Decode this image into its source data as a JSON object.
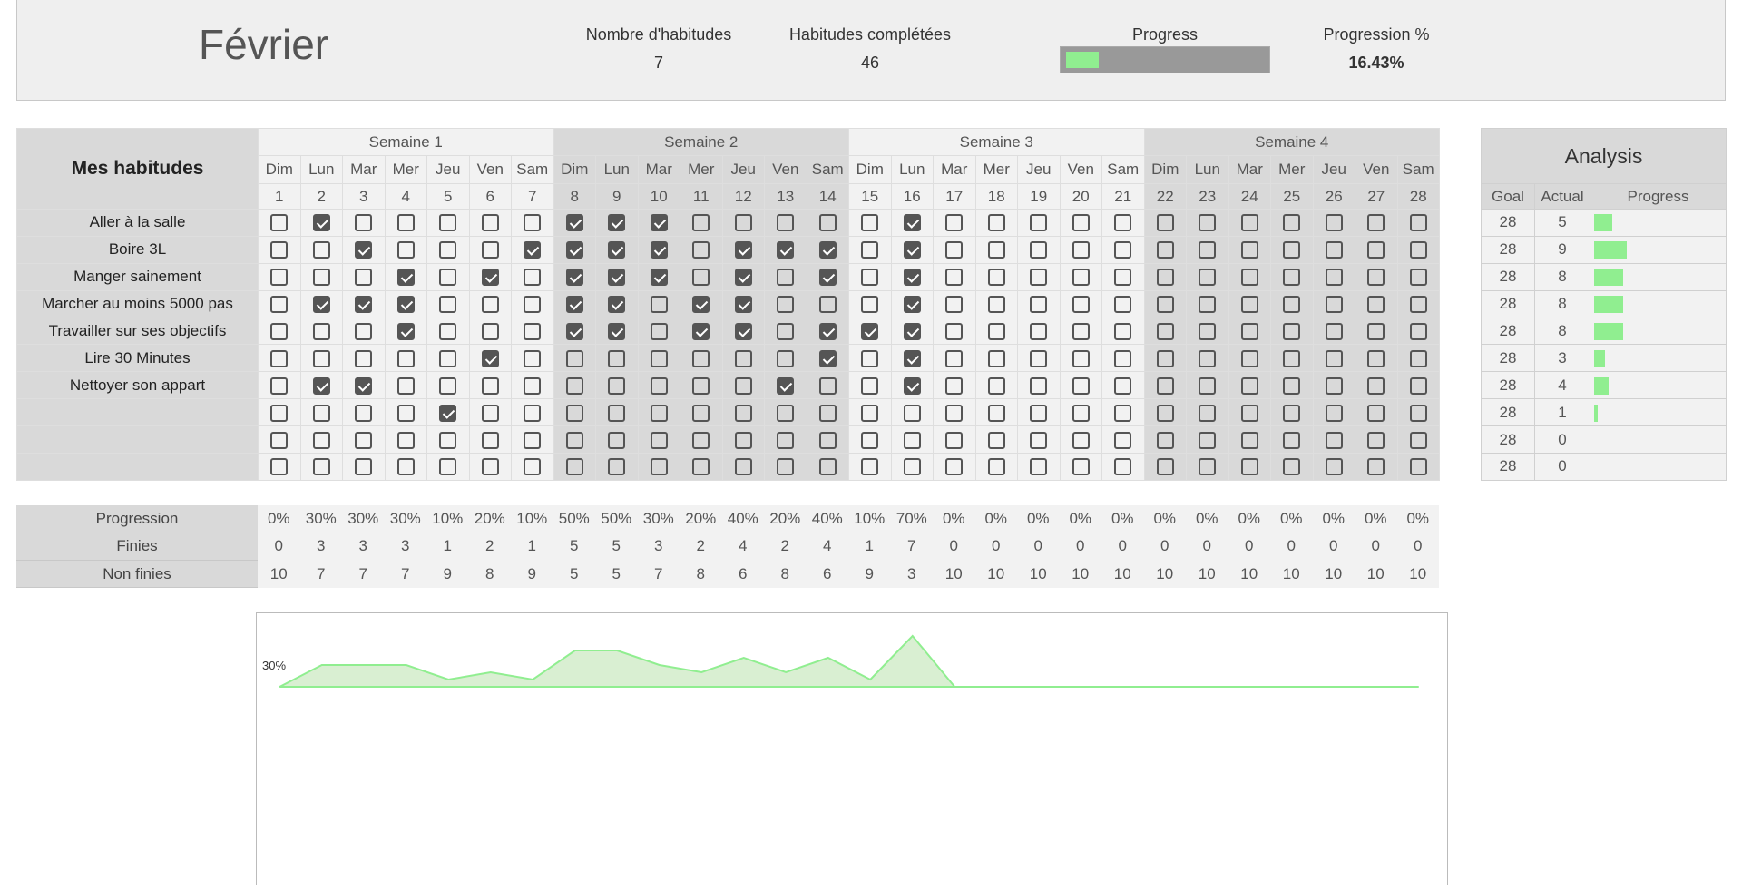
{
  "header": {
    "month": "Février",
    "habit_count_label": "Nombre d'habitudes",
    "habit_count": "7",
    "completed_label": "Habitudes complétées",
    "completed": "46",
    "progress_label": "Progress",
    "progress_fraction": 0.1643,
    "percent_label": "Progression  %",
    "percent": "16.43%"
  },
  "colors": {
    "accent": "#90ee90",
    "checkbox": "#555555",
    "week_light": "#f2f2f2",
    "week_dark": "#d9d9d9"
  },
  "grid": {
    "title": "Mes habitudes",
    "weeks": [
      "Semaine 1",
      "Semaine 2",
      "Semaine 3",
      "Semaine 4"
    ],
    "day_names": [
      "Dim",
      "Lun",
      "Mar",
      "Mer",
      "Jeu",
      "Ven",
      "Sam"
    ],
    "days": [
      "1",
      "2",
      "3",
      "4",
      "5",
      "6",
      "7",
      "8",
      "9",
      "10",
      "11",
      "12",
      "13",
      "14",
      "15",
      "16",
      "17",
      "18",
      "19",
      "20",
      "21",
      "22",
      "23",
      "24",
      "25",
      "26",
      "27",
      "28"
    ],
    "habits": [
      {
        "name": "Aller à la salle",
        "checked": [
          2,
          8,
          9,
          10,
          16
        ]
      },
      {
        "name": "Boire 3L",
        "checked": [
          3,
          7,
          8,
          9,
          10,
          12,
          13,
          14,
          16
        ]
      },
      {
        "name": "Manger sainement",
        "checked": [
          4,
          6,
          8,
          9,
          10,
          12,
          14,
          16
        ]
      },
      {
        "name": "Marcher au moins 5000 pas",
        "checked": [
          2,
          3,
          4,
          8,
          9,
          11,
          12,
          16
        ]
      },
      {
        "name": "Travailler sur ses objectifs",
        "checked": [
          4,
          8,
          9,
          11,
          12,
          14,
          15,
          16
        ]
      },
      {
        "name": "Lire 30 Minutes",
        "checked": [
          6,
          14,
          16
        ]
      },
      {
        "name": "Nettoyer son appart",
        "checked": [
          2,
          3,
          13,
          16
        ]
      },
      {
        "name": "",
        "checked": [
          5
        ]
      },
      {
        "name": "",
        "checked": []
      },
      {
        "name": "",
        "checked": []
      }
    ]
  },
  "analysis": {
    "title": "Analysis",
    "headers": [
      "Goal",
      "Actual",
      "Progress"
    ],
    "rows": [
      {
        "goal": "28",
        "actual": "5"
      },
      {
        "goal": "28",
        "actual": "9"
      },
      {
        "goal": "28",
        "actual": "8"
      },
      {
        "goal": "28",
        "actual": "8"
      },
      {
        "goal": "28",
        "actual": "8"
      },
      {
        "goal": "28",
        "actual": "3"
      },
      {
        "goal": "28",
        "actual": "4"
      },
      {
        "goal": "28",
        "actual": "1"
      },
      {
        "goal": "28",
        "actual": "0"
      },
      {
        "goal": "28",
        "actual": "0"
      }
    ]
  },
  "summary": {
    "rows": [
      {
        "label": "Progression",
        "values": [
          "0%",
          "30%",
          "30%",
          "30%",
          "10%",
          "20%",
          "10%",
          "50%",
          "50%",
          "30%",
          "20%",
          "40%",
          "20%",
          "40%",
          "10%",
          "70%",
          "0%",
          "0%",
          "0%",
          "0%",
          "0%",
          "0%",
          "0%",
          "0%",
          "0%",
          "0%",
          "0%",
          "0%"
        ]
      },
      {
        "label": "Finies",
        "values": [
          "0",
          "3",
          "3",
          "3",
          "1",
          "2",
          "1",
          "5",
          "5",
          "3",
          "2",
          "4",
          "2",
          "4",
          "1",
          "7",
          "0",
          "0",
          "0",
          "0",
          "0",
          "0",
          "0",
          "0",
          "0",
          "0",
          "0",
          "0"
        ]
      },
      {
        "label": "Non finies",
        "values": [
          "10",
          "7",
          "7",
          "7",
          "9",
          "8",
          "9",
          "5",
          "5",
          "7",
          "8",
          "6",
          "8",
          "6",
          "9",
          "3",
          "10",
          "10",
          "10",
          "10",
          "10",
          "10",
          "10",
          "10",
          "10",
          "10",
          "10",
          "10"
        ]
      }
    ]
  },
  "chart_data": {
    "type": "area",
    "x": [
      1,
      2,
      3,
      4,
      5,
      6,
      7,
      8,
      9,
      10,
      11,
      12,
      13,
      14,
      15,
      16,
      17,
      18,
      19,
      20,
      21,
      22,
      23,
      24,
      25,
      26,
      27,
      28
    ],
    "values": [
      0,
      30,
      30,
      30,
      10,
      20,
      10,
      50,
      50,
      30,
      20,
      40,
      20,
      40,
      10,
      70,
      0,
      0,
      0,
      0,
      0,
      0,
      0,
      0,
      0,
      0,
      0,
      0
    ],
    "ytick_labels": [
      "30%"
    ],
    "color": "#90ee90"
  }
}
